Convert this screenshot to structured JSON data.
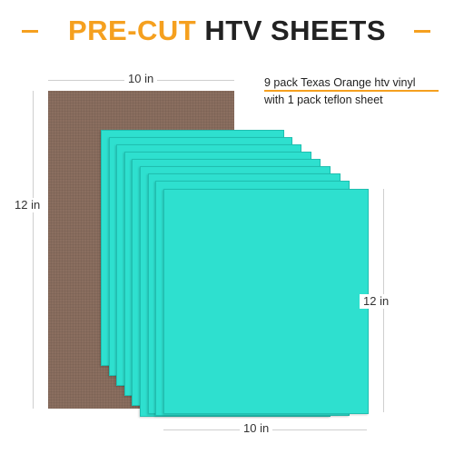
{
  "title": {
    "part1": "PRE-CUT",
    "part2": "HTV SHEETS"
  },
  "teflon_dims": {
    "width_label": "10 in",
    "height_label": "12 in"
  },
  "htv_dims": {
    "width_label": "10 in",
    "height_label": "12 in"
  },
  "description": {
    "line1": "9 pack Texas Orange htv vinyl",
    "line2": "with 1 pack teflon sheet"
  },
  "colors": {
    "accent": "#f5a01f",
    "htv_sheet": "#2ee0cf",
    "teflon_sheet": "#8a6e5f",
    "title_dark": "#222222"
  },
  "htv_sheet_count": 9
}
